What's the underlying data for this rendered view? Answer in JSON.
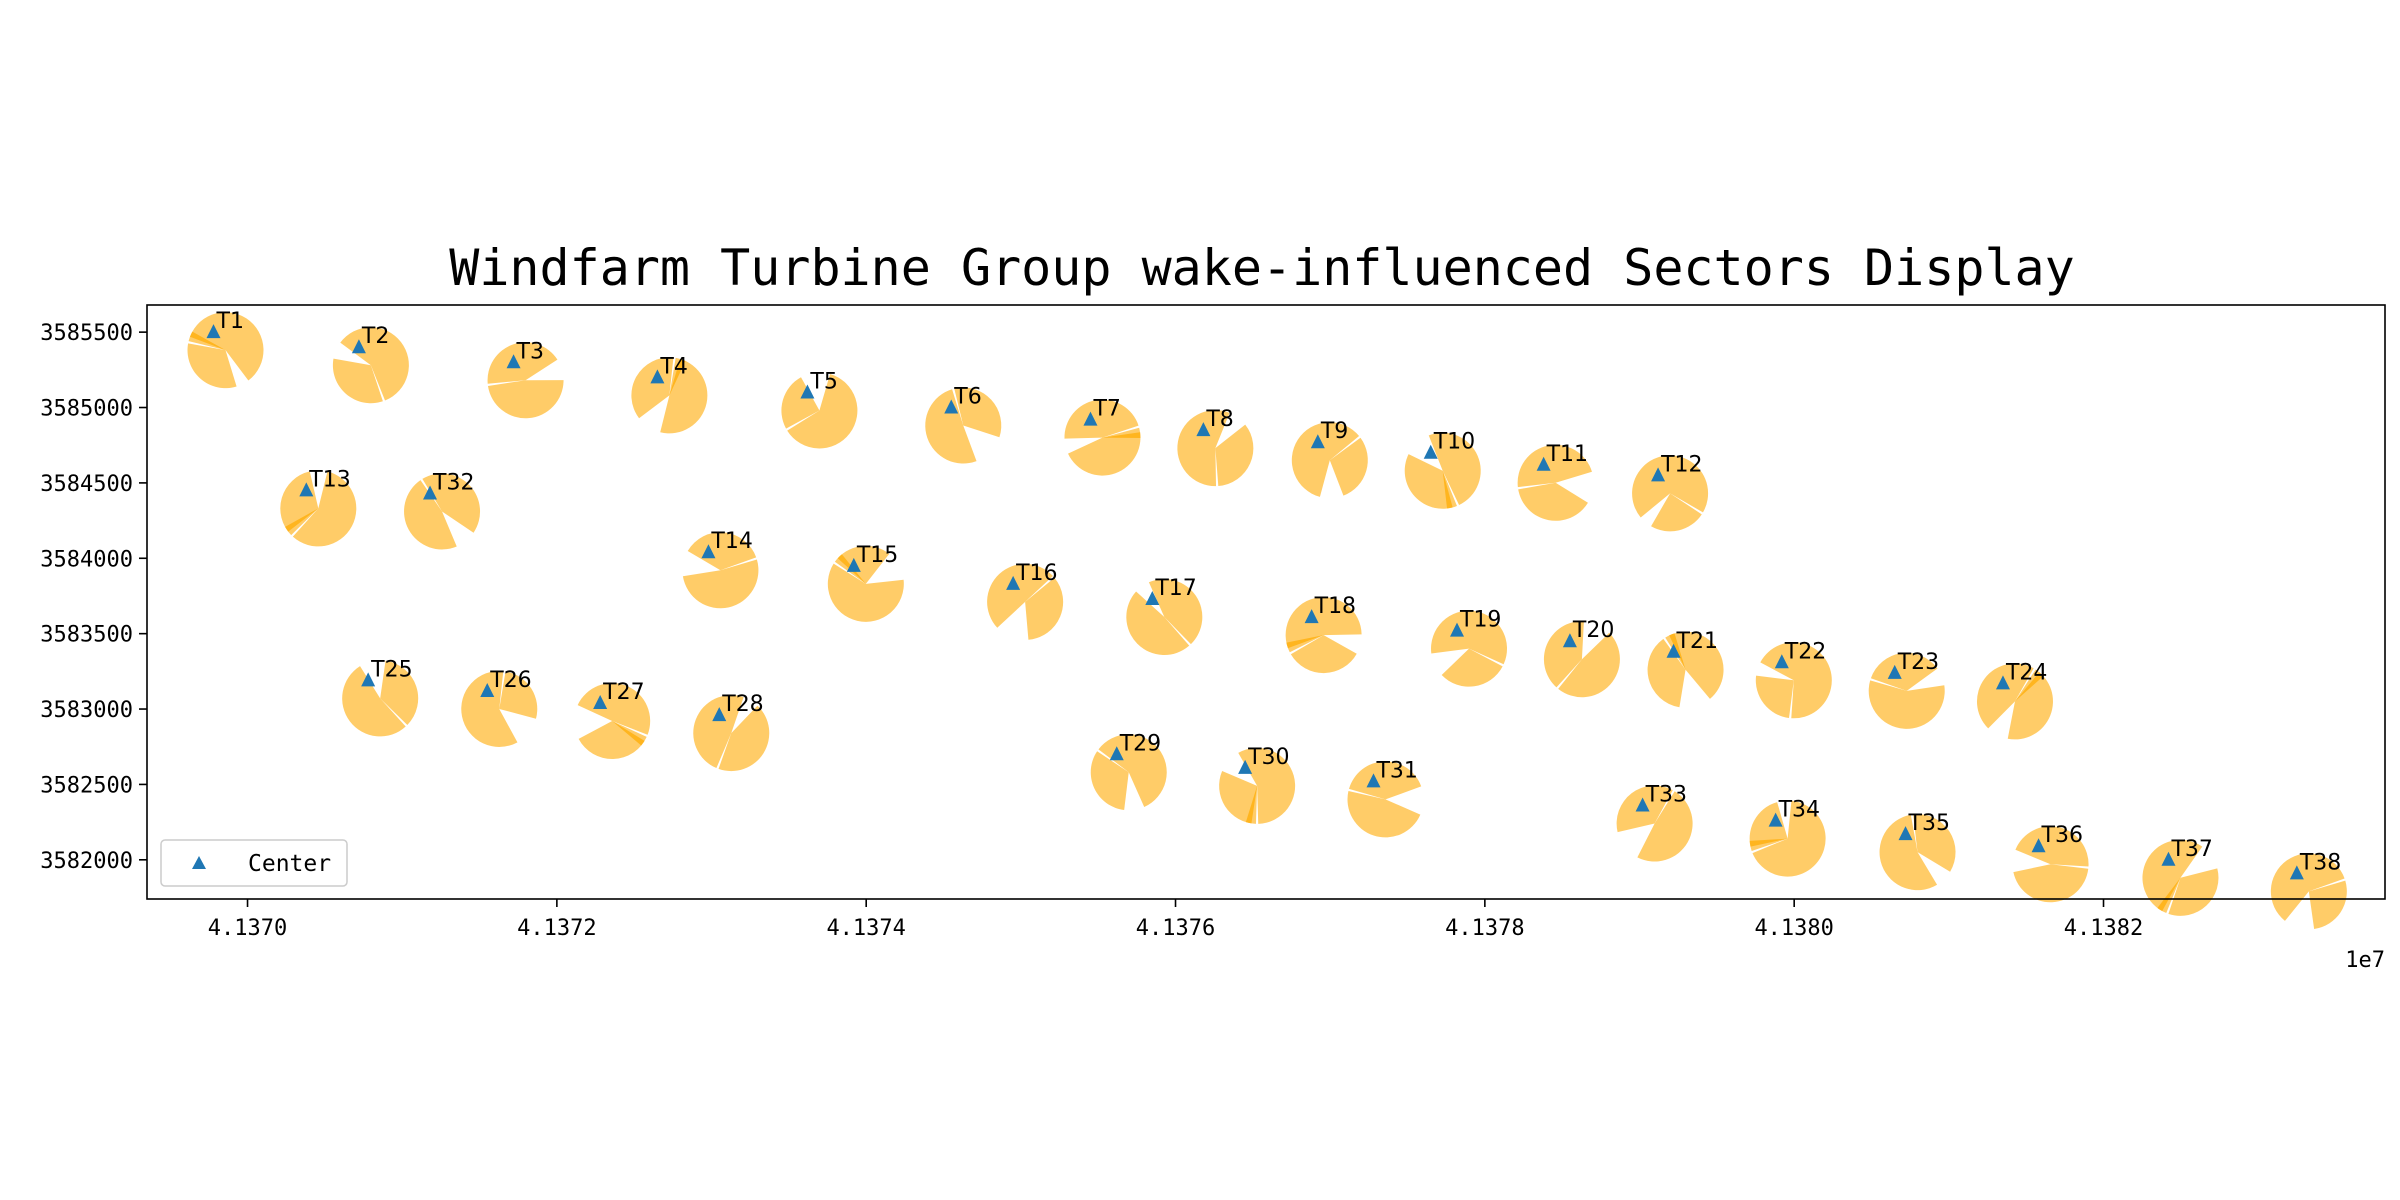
{
  "chart_data": {
    "type": "scatter",
    "title": "Windfarm Turbine Group wake-influenced Sectors Display",
    "xlabel": "",
    "ylabel": "",
    "x_offset_label": "1e7",
    "xlim": [
      41369.35,
      41383.82
    ],
    "ylim": [
      3581740,
      3585680
    ],
    "x_ticks": [
      41370,
      41372,
      41374,
      41376,
      41378,
      41380,
      41382
    ],
    "x_tick_labels": [
      "4.1370",
      "4.1372",
      "4.1374",
      "4.1376",
      "4.1378",
      "4.1380",
      "4.1382"
    ],
    "y_ticks": [
      3582000,
      3582500,
      3583000,
      3583500,
      3584000,
      3584500,
      3585000,
      3585500
    ],
    "y_tick_labels": [
      "3582000",
      "3582500",
      "3583000",
      "3583500",
      "3584000",
      "3584500",
      "3585000",
      "3585500"
    ],
    "grid": false,
    "legend": {
      "position": "lower-left",
      "entries": [
        "Center"
      ]
    },
    "colors": {
      "marker": "#1f77b4",
      "sector": "#ffc34d",
      "sector_overlap": "#ffab00"
    },
    "series": [
      {
        "name": "Center",
        "points": [
          {
            "label": "T1",
            "x": 41369.78,
            "y": 3585500
          },
          {
            "label": "T2",
            "x": 41370.72,
            "y": 3585400
          },
          {
            "label": "T3",
            "x": 41371.72,
            "y": 3585300
          },
          {
            "label": "T4",
            "x": 41372.65,
            "y": 3585200
          },
          {
            "label": "T5",
            "x": 41373.62,
            "y": 3585100
          },
          {
            "label": "T6",
            "x": 41374.55,
            "y": 3585000
          },
          {
            "label": "T7",
            "x": 41375.45,
            "y": 3584920
          },
          {
            "label": "T8",
            "x": 41376.18,
            "y": 3584850
          },
          {
            "label": "T9",
            "x": 41376.92,
            "y": 3584770
          },
          {
            "label": "T10",
            "x": 41377.65,
            "y": 3584700
          },
          {
            "label": "T11",
            "x": 41378.38,
            "y": 3584620
          },
          {
            "label": "T12",
            "x": 41379.12,
            "y": 3584550
          },
          {
            "label": "T13",
            "x": 41370.38,
            "y": 3584450
          },
          {
            "label": "T32",
            "x": 41371.18,
            "y": 3584430
          },
          {
            "label": "T14",
            "x": 41372.98,
            "y": 3584040
          },
          {
            "label": "T15",
            "x": 41373.92,
            "y": 3583950
          },
          {
            "label": "T16",
            "x": 41374.95,
            "y": 3583830
          },
          {
            "label": "T17",
            "x": 41375.85,
            "y": 3583730
          },
          {
            "label": "T18",
            "x": 41376.88,
            "y": 3583610
          },
          {
            "label": "T19",
            "x": 41377.82,
            "y": 3583520
          },
          {
            "label": "T20",
            "x": 41378.55,
            "y": 3583450
          },
          {
            "label": "T21",
            "x": 41379.22,
            "y": 3583380
          },
          {
            "label": "T22",
            "x": 41379.92,
            "y": 3583310
          },
          {
            "label": "T23",
            "x": 41380.65,
            "y": 3583240
          },
          {
            "label": "T24",
            "x": 41381.35,
            "y": 3583170
          },
          {
            "label": "T25",
            "x": 41370.78,
            "y": 3583190
          },
          {
            "label": "T26",
            "x": 41371.55,
            "y": 3583120
          },
          {
            "label": "T27",
            "x": 41372.28,
            "y": 3583040
          },
          {
            "label": "T28",
            "x": 41373.05,
            "y": 3582960
          },
          {
            "label": "T29",
            "x": 41375.62,
            "y": 3582700
          },
          {
            "label": "T30",
            "x": 41376.45,
            "y": 3582610
          },
          {
            "label": "T31",
            "x": 41377.28,
            "y": 3582520
          },
          {
            "label": "T33",
            "x": 41379.02,
            "y": 3582360
          },
          {
            "label": "T34",
            "x": 41379.88,
            "y": 3582260
          },
          {
            "label": "T35",
            "x": 41380.72,
            "y": 3582170
          },
          {
            "label": "T36",
            "x": 41381.58,
            "y": 3582090
          },
          {
            "label": "T37",
            "x": 41382.42,
            "y": 3582000
          },
          {
            "label": "T38",
            "x": 41383.25,
            "y": 3581910
          }
        ]
      }
    ]
  }
}
